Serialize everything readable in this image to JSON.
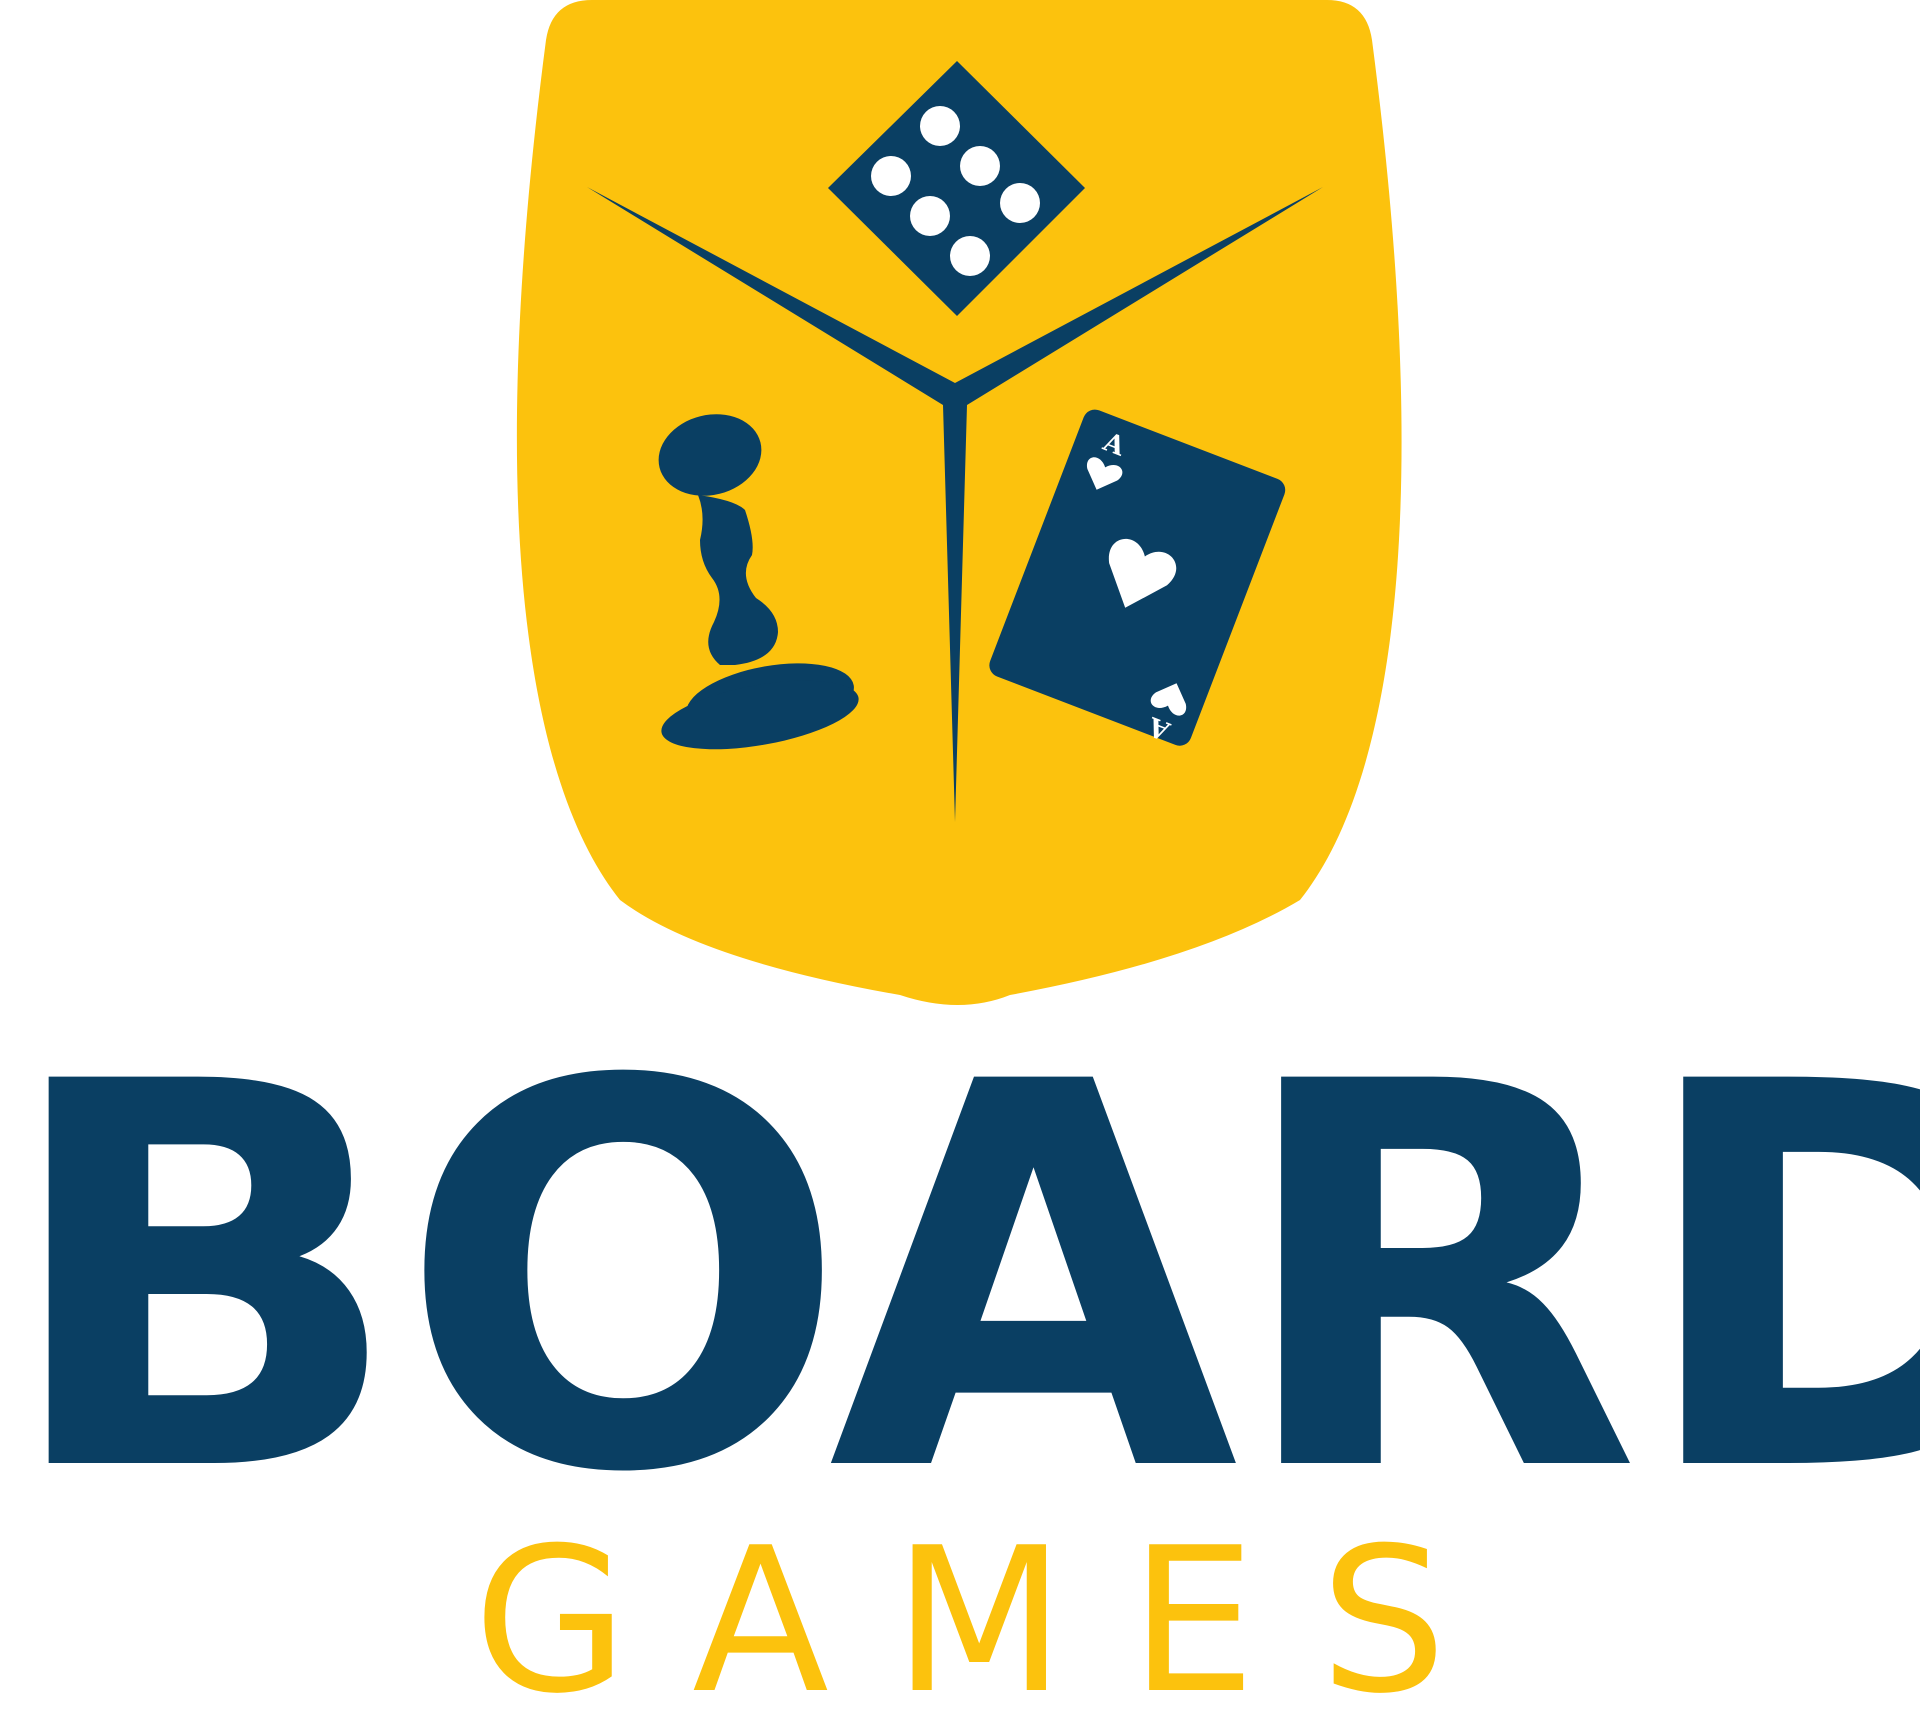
{
  "logo": {
    "title": "BOARD",
    "subtitle": "GAMES",
    "card": {
      "rank_top": "A",
      "rank_bottom": "A"
    },
    "dice_pips": 7
  },
  "colors": {
    "primary_navy": "#0A3F63",
    "accent_yellow": "#FCC20D",
    "background": "#FFFFFF",
    "pip_white": "#FFFFFF"
  }
}
